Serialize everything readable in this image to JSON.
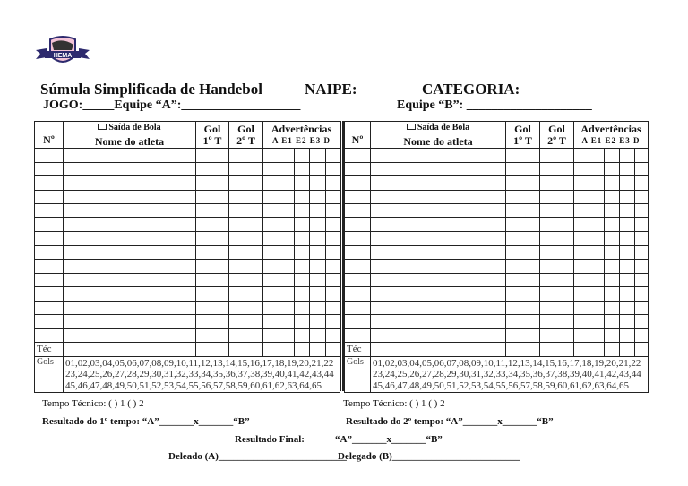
{
  "logo": {
    "text": "HEMA"
  },
  "header": {
    "title": "Súmula Simplificada de Handebol",
    "naipe": "NAIPE:",
    "categoria": "CATEGORIA:",
    "jogo": "JOGO:_____Equipe “A”:___________________",
    "equipe_b": "Equipe “B”: ____________________"
  },
  "table": {
    "no": "Nº",
    "saida": "Saída de Bola",
    "nome": "Nome do atleta",
    "gol1": "Gol",
    "gol1b": "1º T",
    "gol2": "Gol",
    "gol2b": "2º T",
    "adv": "Advertências",
    "adv_sub": "A E1 E2 E3 D",
    "tec": "Téc",
    "gols_label": "Gols",
    "gols_lines": [
      "01,02,03,04,05,06,07,08,09,10,11,12,13,14,15,16,17,18,19,20,21,22",
      "23,24,25,26,27,28,29,30,31,32,33,34,35,36,37,38,39,40,41,42,43,44",
      "45,46,47,48,49,50,51,52,53,54,55,56,57,58,59,60,61,62,63,64,65"
    ]
  },
  "footer": {
    "tempo_tecnico": "Tempo Técnico: (  ) 1    (   ) 2",
    "resultado_1": "Resultado do 1º tempo: “A”_______x_______“B”",
    "resultado_2": "Resultado do 2º tempo: “A”_______x_______“B”",
    "resultado_final_label": "Resultado Final:",
    "resultado_final": "“A”_______x_______“B”",
    "delegado_a": "Deleado (A)__________________________",
    "delegado_b": "Delegado (B)__________________________"
  }
}
